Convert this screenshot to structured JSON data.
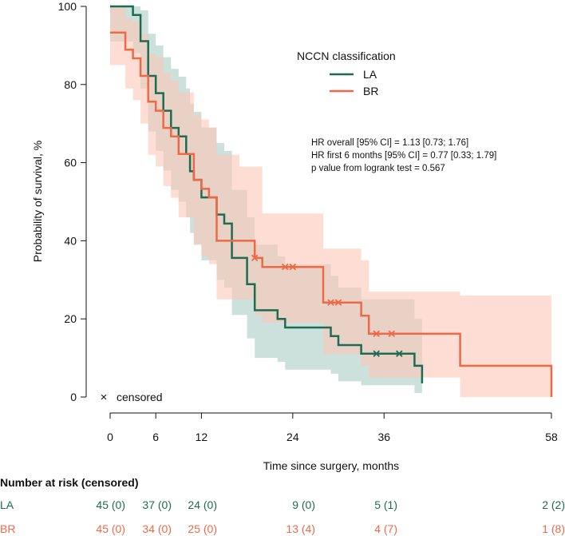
{
  "chart_data": {
    "type": "line",
    "subtype": "kaplan-meier",
    "xlabel": "Time since surgery, months",
    "ylabel": "Probability of survival, %",
    "xticks": [
      0,
      6,
      12,
      24,
      36,
      58
    ],
    "yticks": [
      0,
      20,
      40,
      60,
      80,
      100
    ],
    "xlim": [
      0,
      58
    ],
    "ylim": [
      0,
      100
    ],
    "legend": {
      "title": "NCCN classification",
      "placement": "top-right",
      "entries": [
        "LA",
        "BR"
      ]
    },
    "colors": {
      "LA": "#1e6b52",
      "BR": "#ee6a47",
      "LA_band": "#aacdc4",
      "BR_band": "#fbc6b8"
    },
    "annotations": [
      "HR overall [95% CI] = 1.13 [0.73; 1.76]",
      "HR first 6 months [95% CI] = 0.77 [0.33; 1.79]",
      "p value from logrank test = 0.567"
    ],
    "censor_legend": {
      "symbol": "×",
      "label": "censored"
    },
    "series": [
      {
        "name": "LA",
        "steps": [
          [
            0,
            100
          ],
          [
            3,
            100
          ],
          [
            3,
            97.8
          ],
          [
            4,
            97.8
          ],
          [
            4,
            91.1
          ],
          [
            5,
            91.1
          ],
          [
            5,
            82.2
          ],
          [
            6,
            82.2
          ],
          [
            6,
            77.8
          ],
          [
            7,
            77.8
          ],
          [
            7,
            73.3
          ],
          [
            8,
            73.3
          ],
          [
            8,
            68.9
          ],
          [
            9,
            68.9
          ],
          [
            9,
            66.7
          ],
          [
            10,
            66.7
          ],
          [
            10,
            62.2
          ],
          [
            10.5,
            62.2
          ],
          [
            10.5,
            57.8
          ],
          [
            11,
            57.8
          ],
          [
            11,
            55.6
          ],
          [
            12,
            55.6
          ],
          [
            12,
            51.1
          ],
          [
            14,
            51.1
          ],
          [
            14,
            46.7
          ],
          [
            15,
            46.7
          ],
          [
            15,
            44.4
          ],
          [
            16,
            44.4
          ],
          [
            16,
            35.6
          ],
          [
            18,
            35.6
          ],
          [
            18,
            28.9
          ],
          [
            19,
            28.9
          ],
          [
            19,
            22.2
          ],
          [
            22,
            22.2
          ],
          [
            22,
            20
          ],
          [
            23,
            20
          ],
          [
            23,
            17.8
          ],
          [
            29,
            17.8
          ],
          [
            29,
            15.6
          ],
          [
            30,
            15.6
          ],
          [
            30,
            13.3
          ],
          [
            33,
            13.3
          ],
          [
            33,
            11.1
          ],
          [
            40,
            11.1
          ],
          [
            40,
            8
          ],
          [
            41,
            8
          ],
          [
            41,
            4
          ],
          [
            41,
            3.5
          ]
        ],
        "lower": [
          [
            0,
            91
          ],
          [
            3,
            91
          ],
          [
            3,
            88
          ],
          [
            4,
            88
          ],
          [
            4,
            79
          ],
          [
            5,
            79
          ],
          [
            5,
            68
          ],
          [
            6,
            68
          ],
          [
            6,
            63
          ],
          [
            7,
            63
          ],
          [
            7,
            58
          ],
          [
            8,
            58
          ],
          [
            8,
            53
          ],
          [
            9,
            53
          ],
          [
            9,
            50
          ],
          [
            10,
            50
          ],
          [
            10,
            46
          ],
          [
            10.5,
            46
          ],
          [
            10.5,
            42
          ],
          [
            11,
            42
          ],
          [
            11,
            39
          ],
          [
            12,
            39
          ],
          [
            12,
            35
          ],
          [
            14,
            35
          ],
          [
            14,
            30
          ],
          [
            15,
            30
          ],
          [
            15,
            28
          ],
          [
            16,
            28
          ],
          [
            16,
            21
          ],
          [
            18,
            21
          ],
          [
            18,
            15
          ],
          [
            19,
            15
          ],
          [
            19,
            10
          ],
          [
            22,
            10
          ],
          [
            22,
            9
          ],
          [
            23,
            9
          ],
          [
            23,
            7
          ],
          [
            29,
            7
          ],
          [
            29,
            6
          ],
          [
            30,
            6
          ],
          [
            30,
            4
          ],
          [
            33,
            4
          ],
          [
            33,
            3
          ],
          [
            40,
            3
          ],
          [
            40,
            1
          ],
          [
            41,
            1
          ]
        ],
        "upper": [
          [
            0,
            100
          ],
          [
            3,
            100
          ],
          [
            3,
            100
          ],
          [
            4,
            100
          ],
          [
            4,
            99
          ],
          [
            5,
            99
          ],
          [
            5,
            93
          ],
          [
            6,
            93
          ],
          [
            6,
            90
          ],
          [
            7,
            90
          ],
          [
            7,
            87
          ],
          [
            8,
            87
          ],
          [
            8,
            84
          ],
          [
            9,
            84
          ],
          [
            9,
            82
          ],
          [
            10,
            82
          ],
          [
            10,
            79
          ],
          [
            10.5,
            79
          ],
          [
            10.5,
            75
          ],
          [
            11,
            75
          ],
          [
            11,
            73
          ],
          [
            12,
            73
          ],
          [
            12,
            69
          ],
          [
            14,
            69
          ],
          [
            14,
            65
          ],
          [
            15,
            65
          ],
          [
            15,
            63
          ],
          [
            16,
            63
          ],
          [
            16,
            53
          ],
          [
            18,
            53
          ],
          [
            18,
            46
          ],
          [
            19,
            46
          ],
          [
            19,
            39
          ],
          [
            22,
            39
          ],
          [
            22,
            36
          ],
          [
            23,
            36
          ],
          [
            23,
            34
          ],
          [
            29,
            34
          ],
          [
            29,
            31
          ],
          [
            30,
            31
          ],
          [
            30,
            28
          ],
          [
            33,
            28
          ],
          [
            33,
            25
          ],
          [
            40,
            25
          ],
          [
            40,
            20
          ],
          [
            41,
            20
          ]
        ],
        "censored": [
          [
            35,
            11.1
          ],
          [
            38,
            11.1
          ]
        ]
      },
      {
        "name": "BR",
        "steps": [
          [
            0,
            93.3
          ],
          [
            2,
            93.3
          ],
          [
            2,
            88.9
          ],
          [
            3,
            88.9
          ],
          [
            3,
            86.7
          ],
          [
            4,
            86.7
          ],
          [
            4,
            82.2
          ],
          [
            5,
            82.2
          ],
          [
            5,
            75.6
          ],
          [
            6,
            75.6
          ],
          [
            6,
            73.3
          ],
          [
            7,
            73.3
          ],
          [
            7,
            68.9
          ],
          [
            8,
            68.9
          ],
          [
            8,
            66.7
          ],
          [
            9,
            66.7
          ],
          [
            9,
            62.2
          ],
          [
            11,
            62.2
          ],
          [
            11,
            55.6
          ],
          [
            12,
            55.6
          ],
          [
            12,
            53.3
          ],
          [
            13,
            53.3
          ],
          [
            13,
            51.1
          ],
          [
            14,
            51.1
          ],
          [
            14,
            40
          ],
          [
            19,
            40
          ],
          [
            19,
            35.6
          ],
          [
            20,
            35.6
          ],
          [
            20,
            33.3
          ],
          [
            28,
            33.3
          ],
          [
            28,
            24.2
          ],
          [
            33,
            24.2
          ],
          [
            33,
            20.8
          ],
          [
            34,
            20.8
          ],
          [
            34,
            16.2
          ],
          [
            46,
            16.2
          ],
          [
            46,
            8
          ],
          [
            58,
            8
          ],
          [
            58,
            0
          ]
        ],
        "lower": [
          [
            0,
            85
          ],
          [
            2,
            85
          ],
          [
            2,
            79
          ],
          [
            3,
            79
          ],
          [
            3,
            76
          ],
          [
            4,
            76
          ],
          [
            4,
            70
          ],
          [
            5,
            70
          ],
          [
            5,
            62
          ],
          [
            6,
            62
          ],
          [
            6,
            59
          ],
          [
            7,
            59
          ],
          [
            7,
            54
          ],
          [
            8,
            54
          ],
          [
            8,
            51
          ],
          [
            9,
            51
          ],
          [
            9,
            46
          ],
          [
            11,
            46
          ],
          [
            11,
            39
          ],
          [
            12,
            39
          ],
          [
            12,
            36
          ],
          [
            13,
            36
          ],
          [
            13,
            34
          ],
          [
            14,
            34
          ],
          [
            14,
            25
          ],
          [
            19,
            25
          ],
          [
            19,
            21
          ],
          [
            20,
            21
          ],
          [
            20,
            19
          ],
          [
            28,
            19
          ],
          [
            28,
            11
          ],
          [
            33,
            11
          ],
          [
            33,
            8
          ],
          [
            34,
            8
          ],
          [
            34,
            5
          ],
          [
            46,
            5
          ],
          [
            46,
            0
          ],
          [
            58,
            0
          ]
        ],
        "upper": [
          [
            0,
            100
          ],
          [
            2,
            100
          ],
          [
            2,
            97
          ],
          [
            3,
            97
          ],
          [
            3,
            96
          ],
          [
            4,
            96
          ],
          [
            4,
            93
          ],
          [
            5,
            93
          ],
          [
            5,
            88
          ],
          [
            6,
            88
          ],
          [
            6,
            87
          ],
          [
            7,
            87
          ],
          [
            7,
            83
          ],
          [
            8,
            83
          ],
          [
            8,
            81
          ],
          [
            9,
            81
          ],
          [
            9,
            78
          ],
          [
            11,
            78
          ],
          [
            11,
            72
          ],
          [
            12,
            72
          ],
          [
            12,
            71
          ],
          [
            13,
            71
          ],
          [
            13,
            69
          ],
          [
            14,
            69
          ],
          [
            14,
            62
          ],
          [
            17,
            62
          ],
          [
            17,
            59
          ],
          [
            20,
            59
          ],
          [
            20,
            47
          ],
          [
            28,
            47
          ],
          [
            28,
            38
          ],
          [
            33,
            38
          ],
          [
            33,
            35
          ],
          [
            34,
            35
          ],
          [
            34,
            27
          ],
          [
            46,
            27
          ],
          [
            46,
            26
          ],
          [
            58,
            26
          ]
        ],
        "censored": [
          [
            19,
            35.6
          ],
          [
            23,
            33.3
          ],
          [
            24,
            33.3
          ],
          [
            29,
            24.2
          ],
          [
            30,
            24.2
          ],
          [
            35,
            16.2
          ],
          [
            37,
            16.2
          ]
        ]
      }
    ],
    "risk_table": {
      "title": "Number at risk (censored)",
      "times": [
        0,
        6,
        12,
        24,
        36,
        58
      ],
      "rows": [
        {
          "name": "LA",
          "cells": [
            "45 (0)",
            "37 (0)",
            "24 (0)",
            "9 (0)",
            "5 (1)",
            "2 (2)"
          ]
        },
        {
          "name": "BR",
          "cells": [
            "45 (0)",
            "34 (0)",
            "25 (0)",
            "13 (4)",
            "4 (7)",
            "1 (8)"
          ]
        }
      ]
    }
  }
}
